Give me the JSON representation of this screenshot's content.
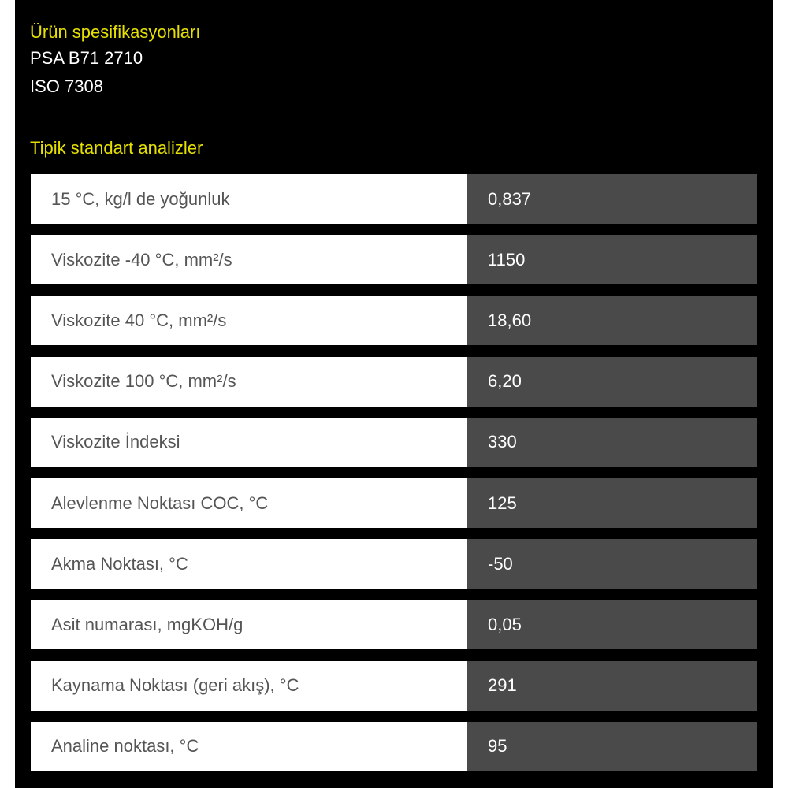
{
  "specs": {
    "heading": "Ürün spesifikasyonları",
    "items": [
      "PSA B71 2710",
      "ISO 7308"
    ]
  },
  "analysis": {
    "heading": "Tipik standart analizler",
    "rows": [
      {
        "label": "15 °C, kg/l de yoğunluk",
        "value": "0,837"
      },
      {
        "label": "Viskozite -40 °C, mm²/s",
        "value": "1150"
      },
      {
        "label": "Viskozite 40 °C, mm²/s",
        "value": "18,60"
      },
      {
        "label": "Viskozite 100 °C, mm²/s",
        "value": "6,20"
      },
      {
        "label": "Viskozite İndeksi",
        "value": "330"
      },
      {
        "label": "Alevlenme Noktası COC, °C",
        "value": "125"
      },
      {
        "label": "Akma Noktası, °C",
        "value": "-50"
      },
      {
        "label": "Asit numarası, mgKOH/g",
        "value": "0,05"
      },
      {
        "label": "Kaynama Noktası (geri akış), °C",
        "value": "291"
      },
      {
        "label": "Analine noktası, °C",
        "value": "95"
      }
    ]
  }
}
